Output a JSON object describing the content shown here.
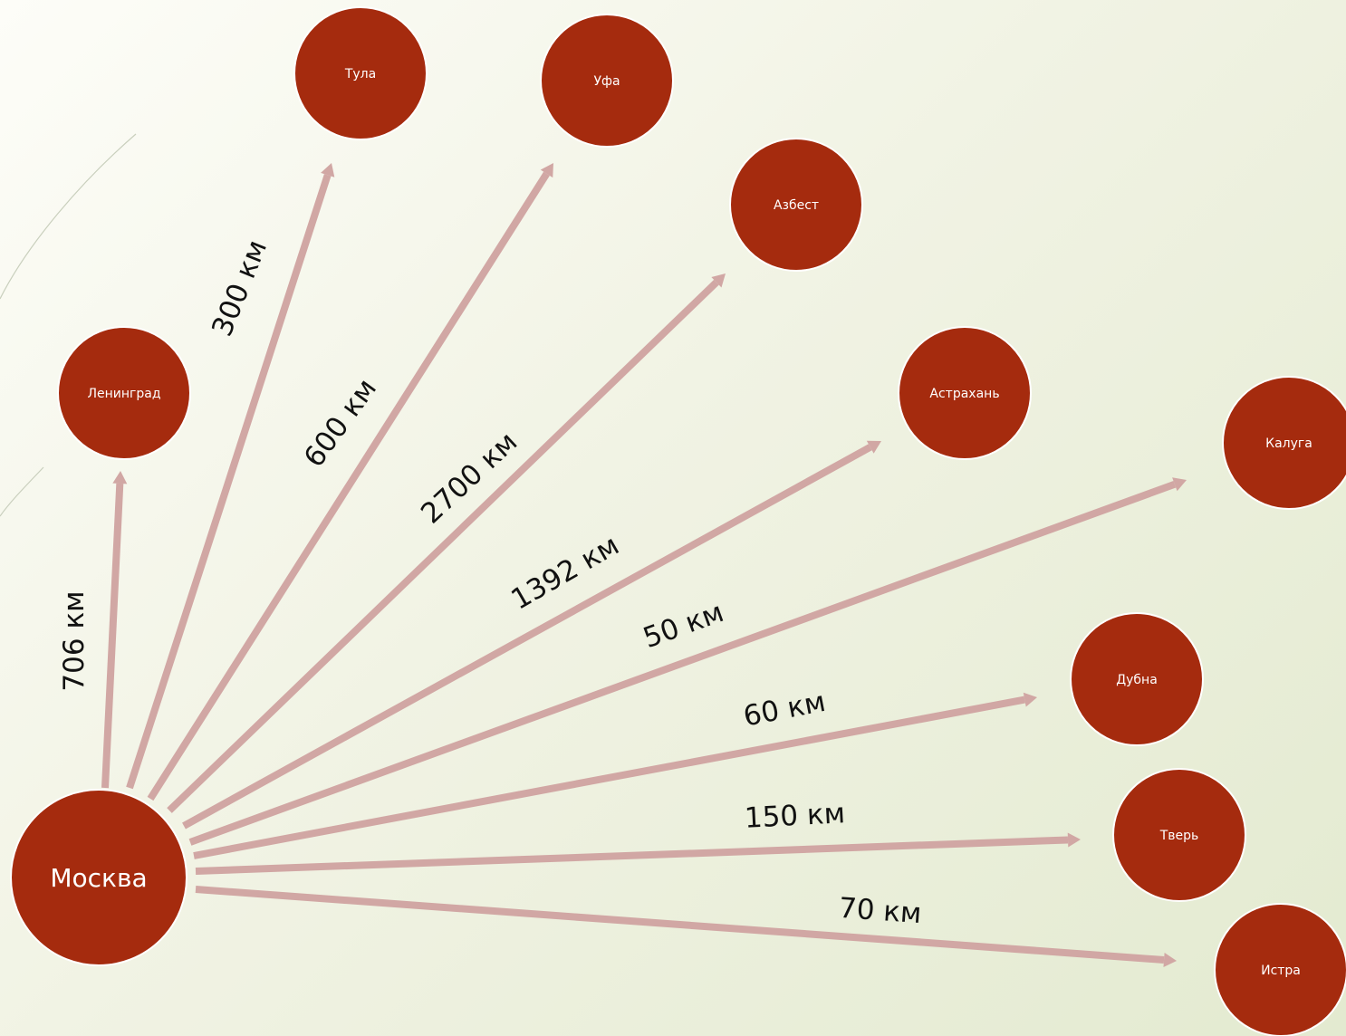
{
  "hub": {
    "name": "Москва"
  },
  "routes": [
    {
      "city": "Ленинград",
      "distance": "706 км"
    },
    {
      "city": "Тула",
      "distance": "300 км"
    },
    {
      "city": "Уфа",
      "distance": "600 км"
    },
    {
      "city": "Азбест",
      "distance": "2700 км"
    },
    {
      "city": "Астрахань",
      "distance": "1392 км"
    },
    {
      "city": "Калуга",
      "distance": "50 км"
    },
    {
      "city": "Дубна",
      "distance": "60 км"
    },
    {
      "city": "Тверь",
      "distance": "150 км"
    },
    {
      "city": "Истра",
      "distance": "70 км"
    }
  ],
  "colors": {
    "node_fill": "#a52b0e",
    "arrow": "#d1a7a4",
    "text_on_node": "#ffffff",
    "distance_text": "#111111"
  }
}
